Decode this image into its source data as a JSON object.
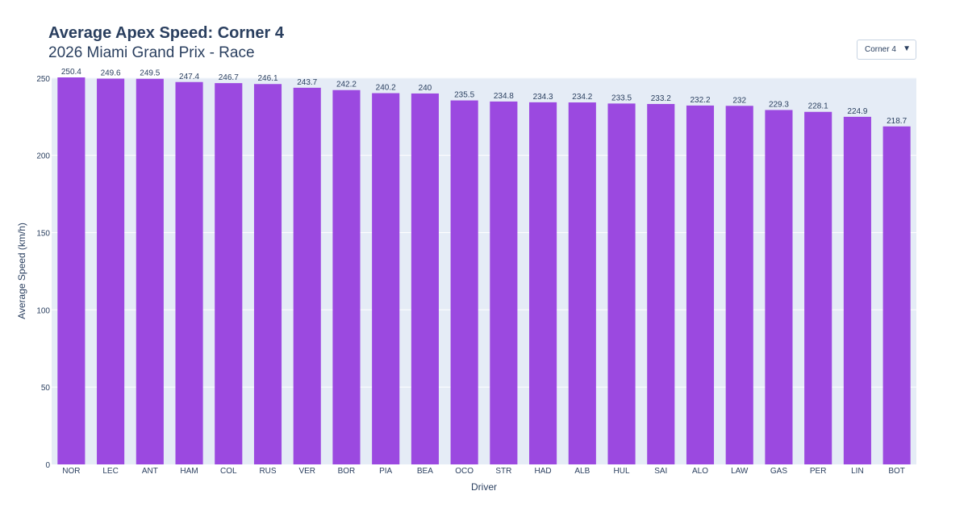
{
  "header": {
    "title": "Average Apex Speed: Corner 4",
    "subtitle": "2026 Miami Grand Prix - Race"
  },
  "dropdown": {
    "selected": "Corner 4",
    "arrow_icon": "triangle-down-icon"
  },
  "colors": {
    "bar": "#9b49e0",
    "plot_bg": "#e5ecf6",
    "text": "#2a3f5f"
  },
  "chart_data": {
    "type": "bar",
    "title": "Average Apex Speed: Corner 4",
    "subtitle": "2026 Miami Grand Prix - Race",
    "xlabel": "Driver",
    "ylabel": "Average Speed (km/h)",
    "ylim": [
      0,
      250.4
    ],
    "yticks": [
      0,
      50,
      100,
      150,
      200,
      250
    ],
    "grid": true,
    "categories": [
      "NOR",
      "LEC",
      "ANT",
      "HAM",
      "COL",
      "RUS",
      "VER",
      "BOR",
      "PIA",
      "BEA",
      "OCO",
      "STR",
      "HAD",
      "ALB",
      "HUL",
      "SAI",
      "ALO",
      "LAW",
      "GAS",
      "PER",
      "LIN",
      "BOT"
    ],
    "values": [
      250.4,
      249.6,
      249.5,
      247.4,
      246.7,
      246.1,
      243.7,
      242.2,
      240.2,
      240,
      235.5,
      234.8,
      234.3,
      234.2,
      233.5,
      233.2,
      232.2,
      232,
      229.3,
      228.1,
      224.9,
      218.7
    ],
    "value_labels": [
      "250.4",
      "249.6",
      "249.5",
      "247.4",
      "246.7",
      "246.1",
      "243.7",
      "242.2",
      "240.2",
      "240",
      "235.5",
      "234.8",
      "234.3",
      "234.2",
      "233.5",
      "233.2",
      "232.2",
      "232",
      "229.3",
      "228.1",
      "224.9",
      "218.7"
    ]
  }
}
